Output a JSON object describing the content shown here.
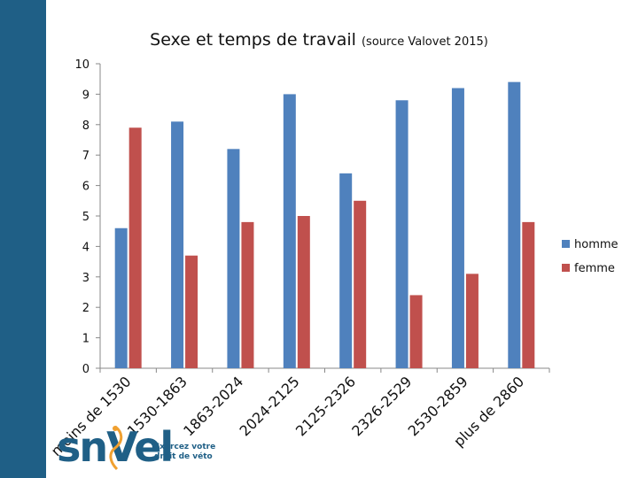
{
  "chart_data": {
    "type": "bar",
    "title": "Sexe et temps de travail",
    "subtitle": "(source Valovet 2015)",
    "categories": [
      "moins de 1530",
      "1530-1863",
      "1863-2024",
      "2024-2125",
      "2125-2326",
      "2326-2529",
      "2530-2859",
      "plus de 2860"
    ],
    "series": [
      {
        "name": "homme",
        "color": "#4f81bd",
        "values": [
          4.6,
          8.1,
          7.2,
          9.0,
          6.4,
          8.8,
          9.2,
          9.4
        ]
      },
      {
        "name": "femme",
        "color": "#c0504d",
        "values": [
          7.9,
          3.7,
          4.8,
          5.0,
          5.5,
          2.4,
          3.1,
          4.8
        ]
      }
    ],
    "yticks": [
      "0",
      "1",
      "2",
      "3",
      "4",
      "5",
      "6",
      "7",
      "8",
      "9",
      "10"
    ],
    "ylim": [
      0,
      10
    ],
    "grid": false,
    "legend": "right"
  },
  "logo": {
    "word": "snVel",
    "tagline_1": "Exercez votre",
    "tagline_2": "droit de véto"
  }
}
